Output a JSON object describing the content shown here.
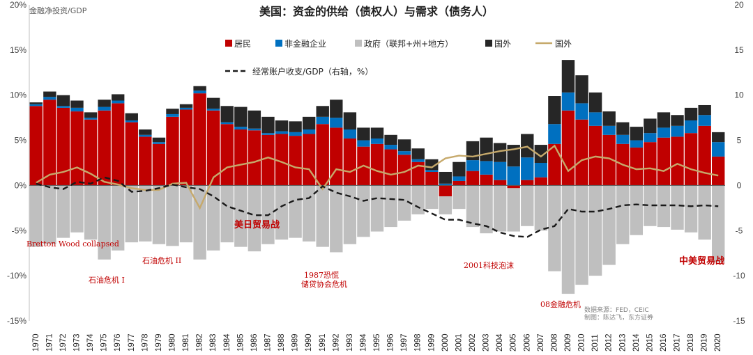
{
  "chart_data": {
    "type": "bar",
    "title": "美国：资金的供给（债权人）与需求（债务人）",
    "ylabel": "金融净投资/GDP",
    "ylim": [
      -15,
      20
    ],
    "y_ticks": [
      "20%",
      "15%",
      "10%",
      "5%",
      "0%",
      "-5%",
      "-10%",
      "-15%"
    ],
    "y2lim": [
      -15,
      20
    ],
    "y2_ticks": [
      "20",
      "15",
      "10",
      "5",
      "0",
      "-5",
      "-10",
      "-15"
    ],
    "years": [
      "1970",
      "1971",
      "1972",
      "1973",
      "1974",
      "1975",
      "1976",
      "1977",
      "1978",
      "1979",
      "1980",
      "1981",
      "1982",
      "1983",
      "1984",
      "1985",
      "1986",
      "1987",
      "1988",
      "1989",
      "1990",
      "1991",
      "1992",
      "1993",
      "1994",
      "1995",
      "1996",
      "1997",
      "1998",
      "1999",
      "2000",
      "2001",
      "2002",
      "2003",
      "2004",
      "2005",
      "2006",
      "2007",
      "2008",
      "2009",
      "2010",
      "2011",
      "2012",
      "2013",
      "2014",
      "2015",
      "2016",
      "2017",
      "2018",
      "2019",
      "2020"
    ],
    "legend": {
      "households": "居民",
      "nonfin": "非金融企业",
      "gov": "政府（联邦+州+地方）",
      "foreign": "国外",
      "foreign_line": "国外",
      "ca": "经常账户收支/GDP（右轴，%）"
    },
    "colors": {
      "households": "#c00000",
      "nonfin": "#0070c0",
      "gov": "#bfbfbf",
      "foreign": "#262626",
      "foreign_line": "#c6a96b",
      "ca": "#1a1a1a"
    },
    "series": [
      {
        "name": "居民",
        "values": [
          8.8,
          9.5,
          8.6,
          8.2,
          7.3,
          8.3,
          9.1,
          7.0,
          5.4,
          4.6,
          7.6,
          8.4,
          10.2,
          8.3,
          6.8,
          6.2,
          6.1,
          5.6,
          5.7,
          5.5,
          5.7,
          6.8,
          6.4,
          5.2,
          4.3,
          4.6,
          4.0,
          3.4,
          2.6,
          1.5,
          -1.2,
          0.5,
          1.6,
          1.2,
          0.6,
          -0.3,
          0.6,
          0.9,
          4.6,
          8.3,
          7.3,
          6.6,
          5.6,
          4.6,
          4.2,
          4.8,
          5.3,
          5.4,
          5.8,
          6.6,
          3.2
        ]
      },
      {
        "name": "非金融企业",
        "values": [
          0.2,
          0.3,
          0.2,
          0.4,
          0.2,
          0.4,
          0.3,
          0.2,
          0.2,
          0.2,
          0.3,
          0.2,
          0.3,
          0.2,
          0.2,
          0.3,
          0.2,
          0.2,
          0.3,
          0.4,
          0.5,
          0.8,
          1.1,
          1.0,
          0.7,
          0.6,
          0.5,
          0.4,
          0.3,
          0.2,
          0.2,
          0.5,
          1.2,
          1.5,
          2.0,
          2.1,
          2.5,
          1.6,
          2.2,
          2.0,
          1.8,
          1.5,
          1.0,
          1.0,
          0.8,
          1.0,
          1.1,
          1.2,
          1.4,
          1.2,
          1.6
        ]
      },
      {
        "name": "国外",
        "values": [
          0.2,
          0.6,
          1.2,
          0.8,
          0.6,
          0.8,
          0.7,
          0.8,
          0.6,
          0.5,
          0.6,
          0.4,
          0.5,
          1.2,
          1.8,
          2.2,
          2.0,
          1.8,
          1.2,
          1.2,
          1.4,
          1.2,
          2.0,
          1.9,
          1.4,
          1.2,
          1.1,
          1.3,
          1.2,
          1.2,
          1.3,
          1.6,
          2.1,
          2.6,
          2.1,
          2.4,
          2.6,
          2.0,
          3.1,
          3.6,
          3.1,
          2.2,
          1.6,
          1.4,
          1.5,
          1.6,
          1.7,
          1.2,
          1.4,
          1.1,
          1.1
        ]
      },
      {
        "name": "政府（联邦+州+地方）",
        "values": [
          -6.8,
          -6.5,
          -5.8,
          -5.2,
          -6.0,
          -8.2,
          -7.2,
          -6.3,
          -6.2,
          -6.5,
          -6.7,
          -6.3,
          -8.2,
          -7.2,
          -6.3,
          -6.8,
          -7.3,
          -6.5,
          -6.0,
          -5.8,
          -6.2,
          -6.8,
          -7.4,
          -6.5,
          -5.7,
          -5.1,
          -4.6,
          -3.9,
          -3.2,
          -2.6,
          -2.0,
          -2.6,
          -4.6,
          -5.3,
          -5.1,
          -4.8,
          -4.5,
          -5.0,
          -9.5,
          -12.0,
          -11.0,
          -10.0,
          -8.8,
          -6.5,
          -5.5,
          -4.5,
          -4.6,
          -4.9,
          -5.2,
          -6.0,
          -8.5
        ]
      },
      {
        "name": "国外",
        "values": [
          0.3,
          1.2,
          1.5,
          2.0,
          1.3,
          0.4,
          0.1,
          -0.3,
          -0.5,
          -0.5,
          0.2,
          0.3,
          -2.5,
          0.9,
          2.0,
          2.3,
          2.6,
          3.1,
          2.6,
          2.0,
          1.8,
          -0.4,
          1.8,
          1.5,
          2.2,
          1.6,
          1.2,
          1.5,
          2.2,
          2.0,
          3.0,
          3.3,
          3.2,
          3.5,
          3.8,
          4.0,
          4.3,
          3.2,
          4.4,
          1.6,
          2.8,
          3.2,
          3.0,
          2.3,
          1.8,
          1.9,
          1.6,
          2.4,
          1.8,
          1.4,
          1.1
        ]
      },
      {
        "name": "经常账户收支/GDP（右轴，%）",
        "values": [
          0.2,
          -0.2,
          -0.4,
          0.4,
          0.2,
          0.9,
          0.5,
          -0.7,
          -0.6,
          -0.3,
          0.1,
          -0.2,
          -0.4,
          -1.2,
          -2.3,
          -2.8,
          -3.3,
          -3.3,
          -2.3,
          -1.6,
          -1.4,
          -0.1,
          -0.8,
          -1.2,
          -1.7,
          -1.4,
          -1.5,
          -1.6,
          -2.4,
          -3.1,
          -3.8,
          -3.8,
          -4.2,
          -4.5,
          -5.2,
          -5.6,
          -5.7,
          -4.9,
          -4.5,
          -2.6,
          -2.9,
          -2.9,
          -2.6,
          -2.2,
          -2.1,
          -2.2,
          -2.2,
          -2.2,
          -2.3,
          -2.2,
          -2.3
        ]
      }
    ],
    "annotations": {
      "bretton": "Bretton Wood collapsed",
      "oil1": "石油危机 I",
      "oil2": "石油危机 II",
      "crash87": "1987恐慌",
      "savings": "储贷协会危机",
      "usjp": "美日贸易战",
      "dotcom": "2001科技泡沫",
      "gfc": "08金融危机",
      "uscn": "中美贸易战"
    },
    "source": "数据来源：FED，CEIC",
    "author": "制图：陈达飞，东方证券"
  }
}
